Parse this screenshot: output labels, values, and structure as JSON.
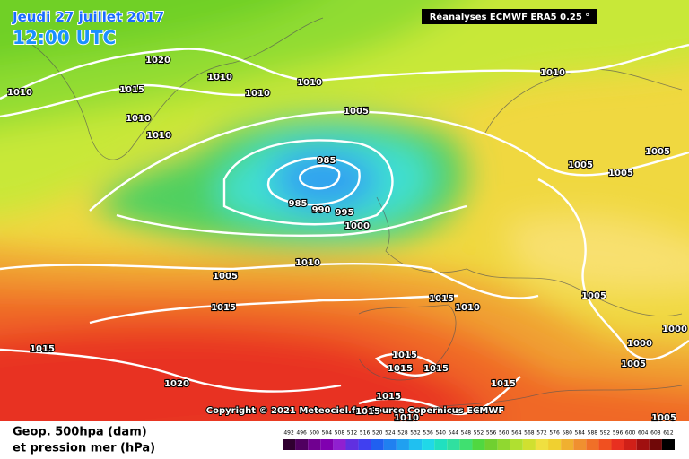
{
  "header": {
    "date": "Jeudi 27 juillet 2017",
    "time": "12:00 UTC",
    "source": "Réanalyses ECMWF ERA5 0.25 °"
  },
  "isobar_labels": [
    "1020",
    "1010",
    "1010",
    "1015",
    "1010",
    "1010",
    "1010",
    "1005",
    "1010",
    "1010",
    "985",
    "1005",
    "1005",
    "1005",
    "985",
    "990",
    "995",
    "1000",
    "1005",
    "1010",
    "1015",
    "1010",
    "1005",
    "1015",
    "1015",
    "1000",
    "1000",
    "1005",
    "1015",
    "1015",
    "1015",
    "1020",
    "1015",
    "1015",
    "1015",
    "1010",
    "1005"
  ],
  "copyright": "Copyright © 2021 Meteociel.fr / Source Copernicus ECMWF",
  "legend": {
    "line1": "Geop. 500hpa (dam)",
    "line2": "et pression mer (hPa)",
    "scale": [
      492,
      496,
      500,
      504,
      508,
      512,
      516,
      520,
      524,
      528,
      532,
      536,
      540,
      544,
      548,
      552,
      556,
      560,
      564,
      568,
      572,
      576,
      580,
      584,
      588,
      592,
      596,
      600,
      604,
      608,
      612
    ],
    "colors": [
      "#300030",
      "#500060",
      "#700090",
      "#8000b0",
      "#9020d0",
      "#6030e0",
      "#4040f0",
      "#2060f0",
      "#2080f0",
      "#20a0f0",
      "#20c0f0",
      "#20d8e8",
      "#20e0c0",
      "#30e0a0",
      "#40e070",
      "#50d840",
      "#70d030",
      "#90d830",
      "#b0e030",
      "#d0e030",
      "#f0e040",
      "#f0d030",
      "#f0b030",
      "#f09030",
      "#f07028",
      "#f05020",
      "#e83020",
      "#d02018",
      "#a01010",
      "#700808",
      "#000000"
    ]
  }
}
